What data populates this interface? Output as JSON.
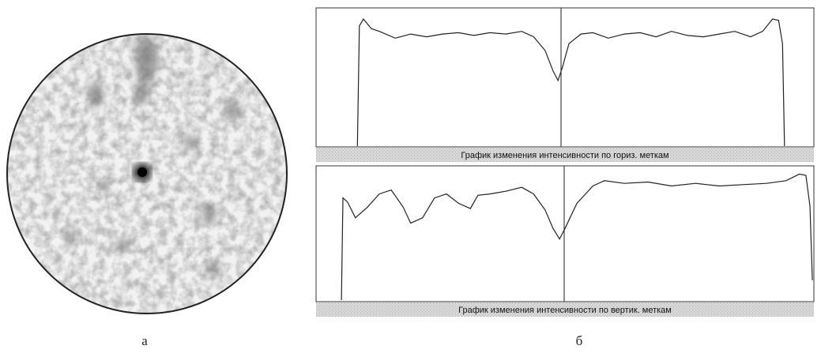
{
  "figure": {
    "panel_a": {
      "label": "а"
    },
    "panel_b": {
      "label": "б"
    }
  },
  "chart_data": [
    {
      "type": "line",
      "caption": "График изменения интенсивности по гориз. меткам",
      "xlim": [
        0,
        100
      ],
      "ylim": [
        0,
        100
      ],
      "x": [
        8.3,
        8.7,
        9.5,
        11.1,
        12.7,
        15.9,
        19.0,
        22.2,
        25.4,
        28.6,
        31.7,
        34.9,
        38.1,
        41.3,
        43.7,
        46.0,
        47.6,
        48.6,
        49.5,
        50.8,
        53.2,
        55.6,
        58.7,
        61.9,
        65.1,
        68.3,
        71.4,
        74.6,
        77.8,
        81.0,
        84.1,
        87.3,
        89.7,
        91.7,
        92.9,
        93.7,
        94.1
      ],
      "series": [
        {
          "color": "#222222",
          "values": [
            0,
            88,
            93,
            86,
            84,
            79,
            82,
            80,
            82,
            83,
            81,
            83,
            82,
            84,
            80,
            70,
            55,
            48,
            58,
            75,
            82,
            83,
            79,
            82,
            83,
            80,
            84,
            81,
            80,
            82,
            84,
            80,
            84,
            93,
            92,
            75,
            0
          ]
        }
      ]
    },
    {
      "type": "line",
      "caption": "График изменения интенсивности по вертик. меткам",
      "xlim": [
        0,
        100
      ],
      "ylim": [
        0,
        100
      ],
      "x": [
        5.1,
        5.4,
        6.3,
        7.9,
        10.3,
        12.7,
        15.1,
        17.5,
        19.0,
        21.4,
        23.8,
        26.2,
        28.6,
        31.0,
        32.5,
        34.9,
        38.1,
        41.3,
        43.7,
        46.0,
        47.6,
        48.9,
        50.0,
        52.4,
        55.6,
        57.9,
        61.9,
        66.7,
        71.4,
        76.2,
        81.0,
        85.7,
        90.5,
        94.4,
        97.1,
        98.4,
        99.2,
        99.7
      ],
      "series": [
        {
          "color": "#222222",
          "values": [
            0,
            77,
            74,
            62,
            70,
            80,
            83,
            70,
            58,
            62,
            77,
            80,
            73,
            69,
            79,
            80,
            82,
            85,
            80,
            68,
            54,
            46,
            54,
            73,
            86,
            90,
            88,
            89,
            86,
            88,
            86,
            87,
            88,
            90,
            95,
            94,
            71,
            15
          ]
        }
      ]
    }
  ]
}
